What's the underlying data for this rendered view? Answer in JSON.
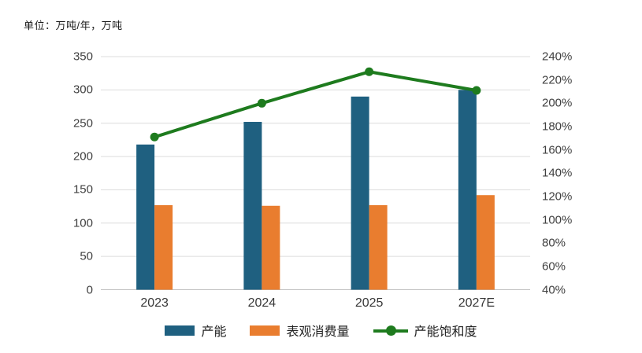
{
  "header": {
    "unit_label": "单位：万吨/年，万吨"
  },
  "chart_data": {
    "type": "bar",
    "subtype": "grouped-bar-with-line-combo",
    "categories": [
      "2023",
      "2024",
      "2025",
      "2027E"
    ],
    "series": [
      {
        "name": "产能",
        "type": "bar",
        "axis": "left",
        "color": "#1F6080",
        "values": [
          218,
          252,
          290,
          300
        ]
      },
      {
        "name": "表观消费量",
        "type": "bar",
        "axis": "left",
        "color": "#E97D2F",
        "values": [
          127,
          126,
          127,
          142
        ]
      },
      {
        "name": "产能饱和度",
        "type": "line",
        "axis": "right",
        "color": "#1E7B1E",
        "unit": "%",
        "values": [
          171,
          200,
          227,
          211
        ]
      }
    ],
    "left_axis": {
      "min": 0,
      "max": 350,
      "step": 50,
      "tick_labels_top_to_bottom": [
        "350",
        "300",
        "250",
        "200",
        "150",
        "100",
        "50",
        "0"
      ]
    },
    "right_axis": {
      "min": 40,
      "max": 240,
      "step": 20,
      "tick_labels_top_to_bottom": [
        "240%",
        "220%",
        "200%",
        "180%",
        "160%",
        "140%",
        "120%",
        "100%",
        "80%",
        "60%",
        "40%"
      ]
    },
    "grid": true,
    "legend_position": "bottom",
    "colors": {
      "gridline": "#DCDCDC",
      "axis_line": "#BFBFBF",
      "tick_text": "#404040"
    }
  }
}
